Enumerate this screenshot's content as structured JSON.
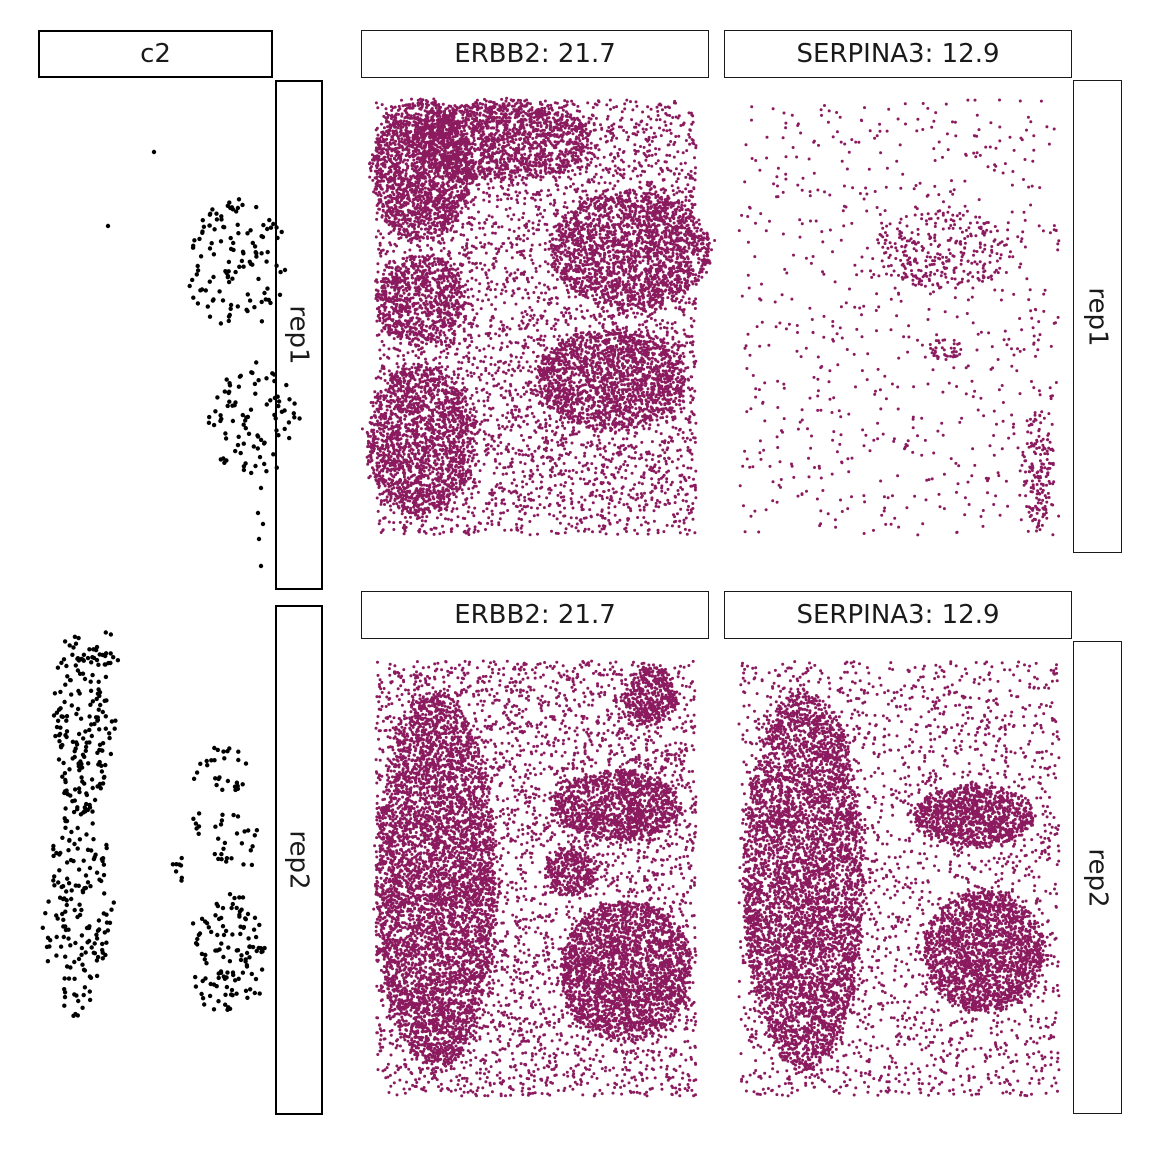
{
  "figure": {
    "left_column": {
      "header": "c2",
      "row_labels": [
        "rep1",
        "rep2"
      ]
    },
    "right_grid": {
      "column_headers_row1": [
        "ERBB2: 21.7",
        "SERPINA3: 12.9"
      ],
      "column_headers_row2": [
        "ERBB2: 21.7",
        "SERPINA3: 12.9"
      ],
      "row_labels": [
        "rep1",
        "rep2"
      ]
    }
  },
  "chart_data": [
    {
      "type": "scatter",
      "title": "c2",
      "facet_row": "rep1",
      "color": "#000000",
      "point_count": 210,
      "note_regions": "sparse black points forming two clusters (upper and lower) on right of panel, with a few outliers"
    },
    {
      "type": "scatter",
      "title": "c2",
      "facet_row": "rep2",
      "color": "#000000",
      "point_count": 520,
      "note_regions": "dense black points in a tall left cluster and three smaller right clusters"
    },
    {
      "type": "scatter",
      "title": "ERBB2: 21.7",
      "facet_row": "rep1",
      "color": "#8B1A5E",
      "point_count": 14000
    },
    {
      "type": "scatter",
      "title": "SERPINA3: 12.9",
      "facet_row": "rep1",
      "color": "#8B1A5E",
      "point_count": 1500
    },
    {
      "type": "scatter",
      "title": "ERBB2: 21.7",
      "facet_row": "rep2",
      "color": "#8B1A5E",
      "point_count": 16000
    },
    {
      "type": "scatter",
      "title": "SERPINA3: 12.9",
      "facet_row": "rep2",
      "color": "#8B1A5E",
      "point_count": 13000
    }
  ],
  "colors": {
    "expression": "#8B1A5E",
    "cells": "#000000"
  }
}
